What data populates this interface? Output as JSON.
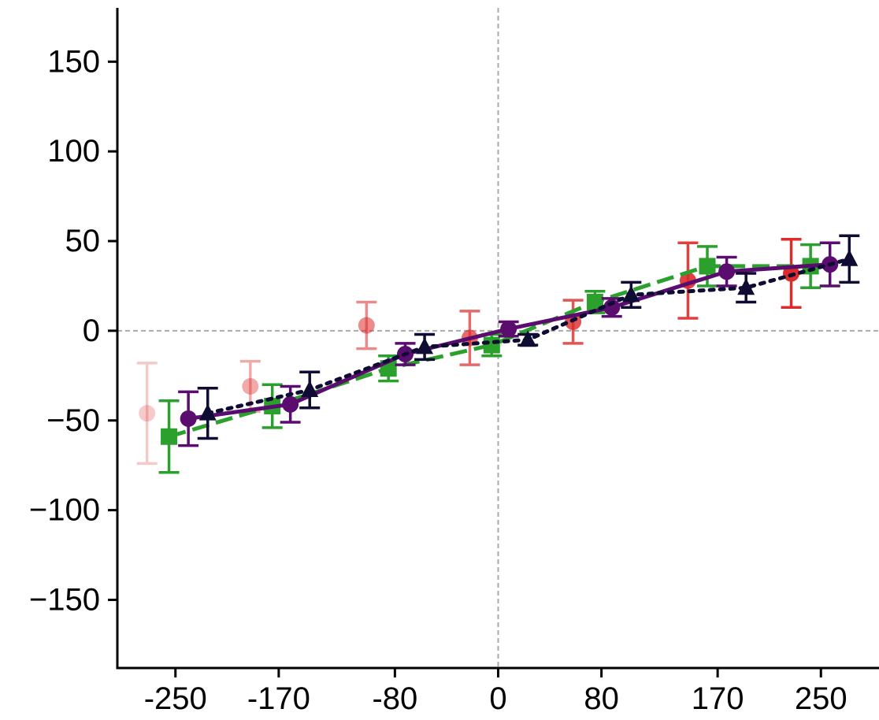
{
  "chart_data": {
    "type": "line",
    "title": "",
    "xlabel": "",
    "ylabel": "",
    "xlim": [
      -295,
      295
    ],
    "ylim": [
      -188,
      180
    ],
    "x_ticks": [
      {
        "value": -250,
        "label": "-250"
      },
      {
        "value": -170,
        "label": "-170"
      },
      {
        "value": -80,
        "label": "-80"
      },
      {
        "value": 0,
        "label": "0"
      },
      {
        "value": 80,
        "label": "80"
      },
      {
        "value": 170,
        "label": "170"
      },
      {
        "value": 250,
        "label": "250"
      }
    ],
    "y_ticks": [
      {
        "value": 150,
        "label": "150"
      },
      {
        "value": 100,
        "label": "100"
      },
      {
        "value": 50,
        "label": "50"
      },
      {
        "value": 0,
        "label": "0"
      },
      {
        "value": -50,
        "label": "−50"
      },
      {
        "value": -100,
        "label": "−100"
      },
      {
        "value": -150,
        "label": "−150"
      }
    ],
    "reference_lines": {
      "x": 0,
      "y": 0
    },
    "grid": false,
    "series": [
      {
        "color": "#dc2b2b",
        "marker": "circle",
        "line": "none",
        "points": [
          {
            "x": -272,
            "y": -46,
            "err": 28,
            "opacity": 0.25
          },
          {
            "x": -192,
            "y": -31,
            "err": 14,
            "opacity": 0.4
          },
          {
            "x": -102,
            "y": 3,
            "err": 13,
            "opacity": 0.55
          },
          {
            "x": -22,
            "y": -4,
            "err": 15,
            "opacity": 0.7
          },
          {
            "x": 58,
            "y": 5,
            "err": 12,
            "opacity": 0.8
          },
          {
            "x": 147,
            "y": 28,
            "err": 21,
            "opacity": 0.9
          },
          {
            "x": 227,
            "y": 32,
            "err": 19,
            "opacity": 1.0
          }
        ]
      },
      {
        "color": "#2ca02c",
        "marker": "square",
        "line": "dashed",
        "points": [
          {
            "x": -255,
            "y": -59,
            "err": 20
          },
          {
            "x": -175,
            "y": -42,
            "err": 12
          },
          {
            "x": -85,
            "y": -21,
            "err": 7
          },
          {
            "x": -5,
            "y": -8,
            "err": 6
          },
          {
            "x": 75,
            "y": 16,
            "err": 6
          },
          {
            "x": 162,
            "y": 36,
            "err": 11
          },
          {
            "x": 242,
            "y": 36,
            "err": 12
          }
        ]
      },
      {
        "color": "#5a0d6e",
        "marker": "circle",
        "line": "solid",
        "points": [
          {
            "x": -240,
            "y": -49,
            "err": 15
          },
          {
            "x": -161,
            "y": -41,
            "err": 10
          },
          {
            "x": -72,
            "y": -13,
            "err": 6
          },
          {
            "x": 8,
            "y": 1,
            "err": 4
          },
          {
            "x": 88,
            "y": 13,
            "err": 5
          },
          {
            "x": 177,
            "y": 33,
            "err": 8
          },
          {
            "x": 257,
            "y": 37,
            "err": 12
          }
        ]
      },
      {
        "color": "#0f0c33",
        "marker": "triangle",
        "line": "dotted",
        "points": [
          {
            "x": -225,
            "y": -46,
            "err": 14
          },
          {
            "x": -146,
            "y": -33,
            "err": 10
          },
          {
            "x": -57,
            "y": -9,
            "err": 7
          },
          {
            "x": 23,
            "y": -5,
            "err": 3
          },
          {
            "x": 103,
            "y": 20,
            "err": 7
          },
          {
            "x": 192,
            "y": 24,
            "err": 8
          },
          {
            "x": 272,
            "y": 40,
            "err": 13
          }
        ]
      }
    ]
  }
}
